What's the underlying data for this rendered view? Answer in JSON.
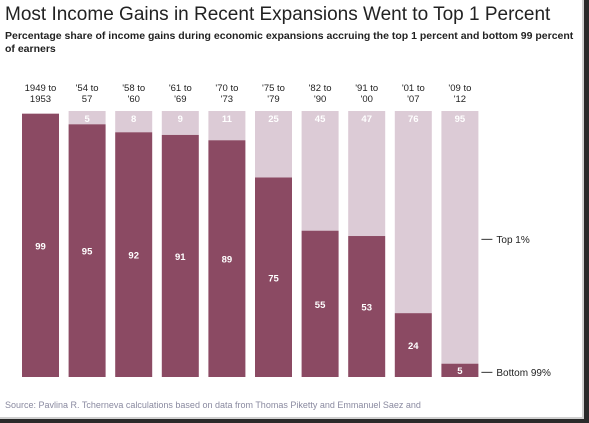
{
  "title": "Most Income Gains in Recent Expansions Went to Top 1 Percent",
  "subtitle": "Percentage share of income gains during economic expansions accruing the top 1 percent and bottom 99 percent of earners",
  "source": "Source: Pavlina R. Tcherneva calculations based on data from Thomas Piketty and Emmanuel Saez and",
  "colors": {
    "bottom99": "#8b4a63",
    "top1": "#dccbd6"
  },
  "chart_data": {
    "type": "bar",
    "stacked": true,
    "categories": [
      [
        "1949 to",
        "1953"
      ],
      [
        "'54 to",
        "57"
      ],
      [
        "'58 to",
        "'60"
      ],
      [
        "'61 to",
        "'69"
      ],
      [
        "'70 to",
        "'73"
      ],
      [
        "'75 to",
        "'79"
      ],
      [
        "'82 to",
        "'90"
      ],
      [
        "'91 to",
        "'00"
      ],
      [
        "'01 to",
        "'07"
      ],
      [
        "'09 to",
        "'12"
      ]
    ],
    "series": [
      {
        "name": "Bottom 99%",
        "values": [
          99,
          95,
          92,
          91,
          89,
          75,
          55,
          53,
          24,
          5
        ]
      },
      {
        "name": "Top 1%",
        "values": [
          null,
          5,
          8,
          9,
          11,
          25,
          45,
          47,
          76,
          95
        ]
      }
    ],
    "legend_labels": [
      "Top 1%",
      "Bottom 99%"
    ],
    "legend_placement": "right",
    "ylim": [
      0,
      100
    ],
    "grid": false
  }
}
